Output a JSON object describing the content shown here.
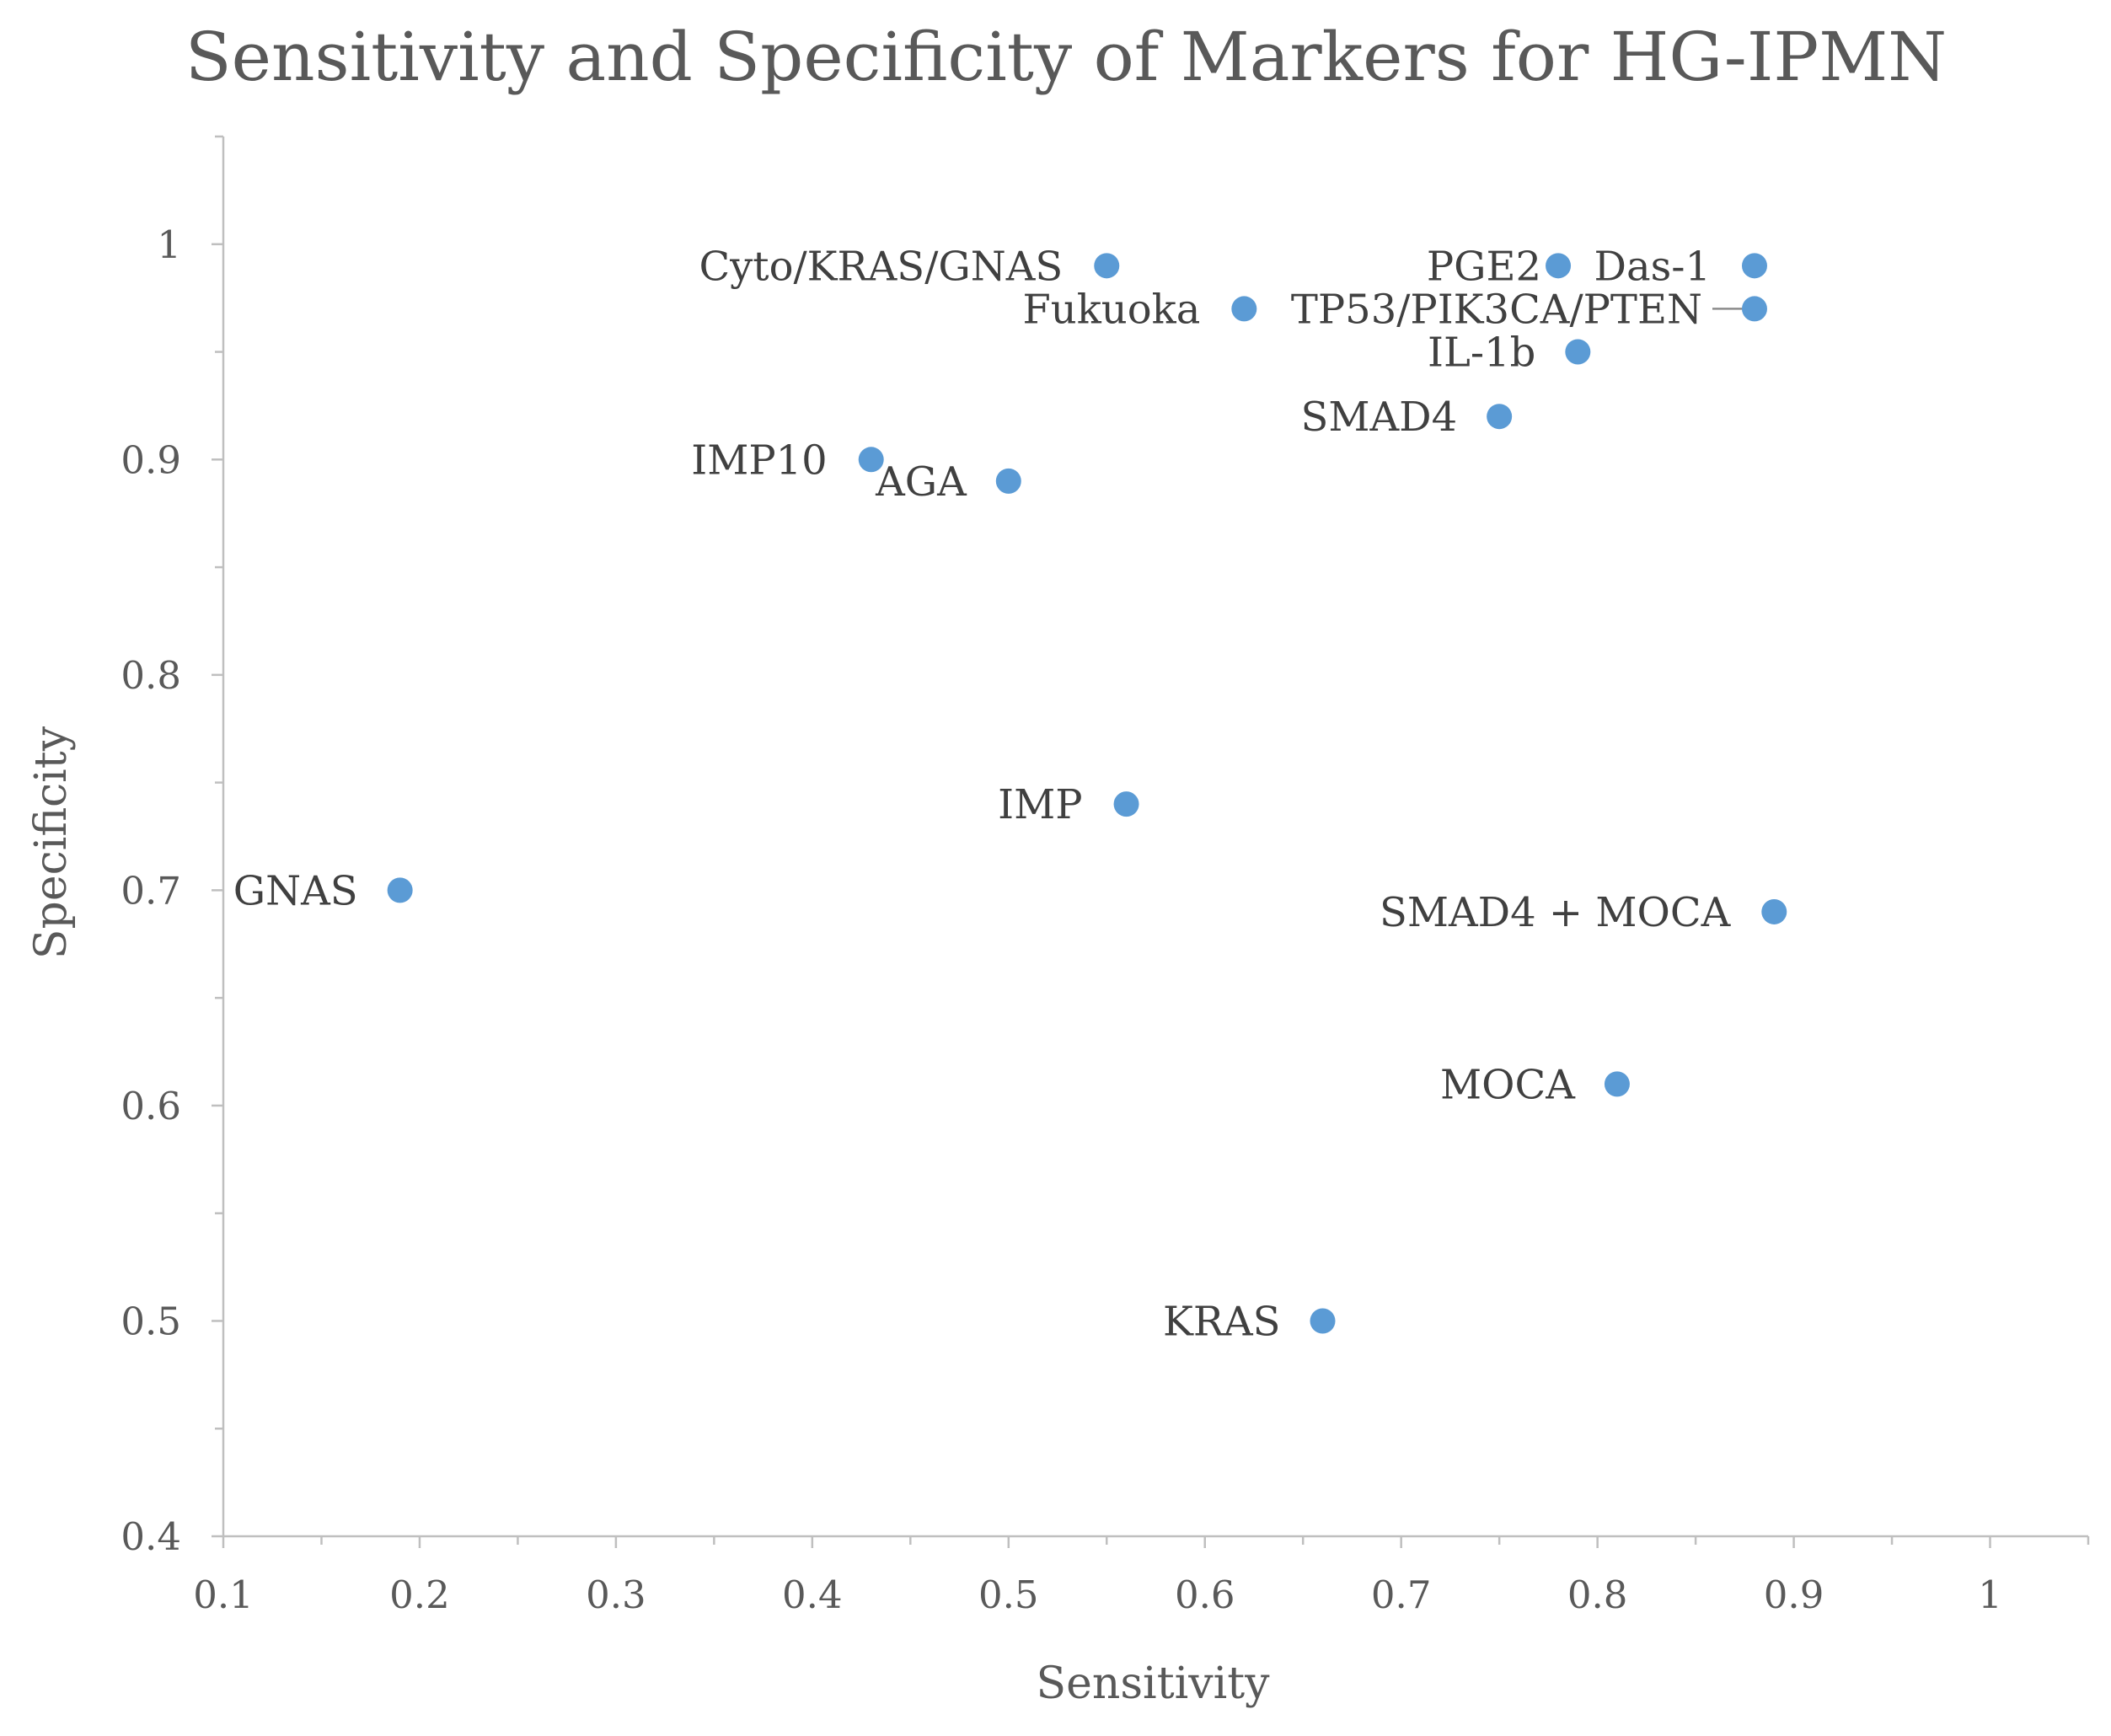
{
  "chart_data": {
    "type": "scatter",
    "title": "Sensitivity and Specificity of Markers for HG-IPMN",
    "xlabel": "Sensitivity",
    "ylabel": "Specificity",
    "xlim": [
      0.1,
      1.05
    ],
    "ylim": [
      0.4,
      1.05
    ],
    "x_ticks": [
      0.1,
      0.2,
      0.3,
      0.4,
      0.5,
      0.6,
      0.7,
      0.8,
      0.9,
      1
    ],
    "x_tick_labels": [
      "0.1",
      "0.2",
      "0.3",
      "0.4",
      "0.5",
      "0.6",
      "0.7",
      "0.8",
      "0.9",
      "1"
    ],
    "y_ticks": [
      0.4,
      0.5,
      0.6,
      0.7,
      0.8,
      0.9,
      1
    ],
    "y_tick_labels": [
      "0.4",
      "0.5",
      "0.6",
      "0.7",
      "0.8",
      "0.9",
      "1"
    ],
    "grid": false,
    "legend": "none",
    "marker_color": "#5b9bd5",
    "points": [
      {
        "label": "Cyto/KRAS/GNAS",
        "x": 0.55,
        "y": 0.99
      },
      {
        "label": "PGE2",
        "x": 0.78,
        "y": 0.99
      },
      {
        "label": "Das-1",
        "x": 0.88,
        "y": 0.99
      },
      {
        "label": "Fukuoka",
        "x": 0.62,
        "y": 0.97
      },
      {
        "label": "TP53/PIK3CA/PTEN",
        "x": 0.88,
        "y": 0.97
      },
      {
        "label": "IL-1b",
        "x": 0.79,
        "y": 0.95
      },
      {
        "label": "SMAD4",
        "x": 0.75,
        "y": 0.92
      },
      {
        "label": "IMP10",
        "x": 0.43,
        "y": 0.9
      },
      {
        "label": "AGA",
        "x": 0.5,
        "y": 0.89
      },
      {
        "label": "IMP",
        "x": 0.56,
        "y": 0.74
      },
      {
        "label": "GNAS",
        "x": 0.19,
        "y": 0.7
      },
      {
        "label": "SMAD4 + MOCA",
        "x": 0.89,
        "y": 0.69
      },
      {
        "label": "MOCA",
        "x": 0.81,
        "y": 0.61
      },
      {
        "label": "KRAS",
        "x": 0.66,
        "y": 0.5
      }
    ]
  }
}
